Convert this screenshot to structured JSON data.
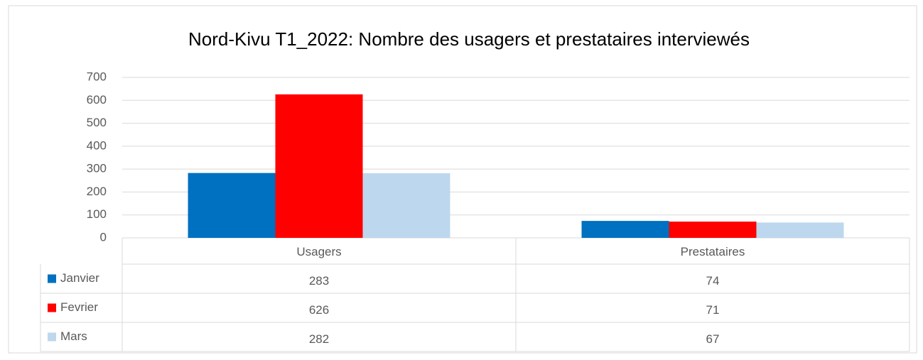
{
  "chart_data": {
    "type": "bar",
    "title": "Nord-Kivu T1_2022: Nombre des usagers et prestataires interviewés",
    "categories": [
      "Usagers",
      "Prestataires"
    ],
    "series": [
      {
        "name": "Janvier",
        "color": "#0070c0",
        "values": [
          283,
          74
        ]
      },
      {
        "name": "Fevrier",
        "color": "#ff0000",
        "values": [
          626,
          71
        ]
      },
      {
        "name": "Mars",
        "color": "#bdd7ee",
        "values": [
          282,
          67
        ]
      }
    ],
    "ylim": [
      0,
      700
    ],
    "yticks": [
      0,
      100,
      200,
      300,
      400,
      500,
      600,
      700
    ],
    "grid": true
  }
}
